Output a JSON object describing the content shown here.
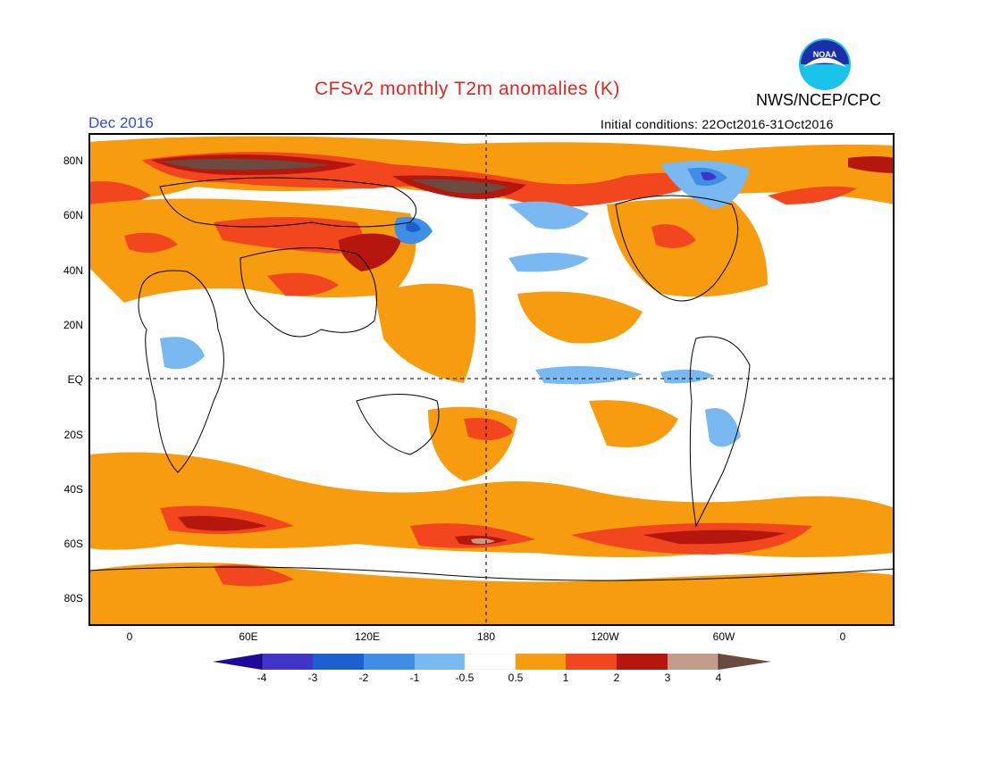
{
  "header": {
    "title": "CFSv2 monthly T2m anomalies (K)",
    "agency": "NWS/NCEP/CPC",
    "period": "Dec 2016",
    "initial_conditions": "Initial conditions: 22Oct2016-31Oct2016",
    "logo_text": "NOAA"
  },
  "map": {
    "lat_labels": [
      "80N",
      "60N",
      "40N",
      "20N",
      "EQ",
      "20S",
      "40S",
      "60S",
      "80S"
    ],
    "lon_labels": [
      "0",
      "60E",
      "120E",
      "180",
      "120W",
      "60W",
      "0"
    ]
  },
  "colorbar": {
    "labels": [
      "-4",
      "-3",
      "-2",
      "-1",
      "-0.5",
      "0.5",
      "1",
      "2",
      "3",
      "4"
    ],
    "colors": [
      "#1e0a9a",
      "#3f35c9",
      "#1c5fce",
      "#3e8ee6",
      "#79b8f0",
      "#ffffff",
      "#f79b0f",
      "#f2461e",
      "#b5160d",
      "#c39b8c",
      "#6b4a3f"
    ]
  },
  "colors": {
    "title": "#e8231e",
    "period": "#2f4bd6"
  }
}
